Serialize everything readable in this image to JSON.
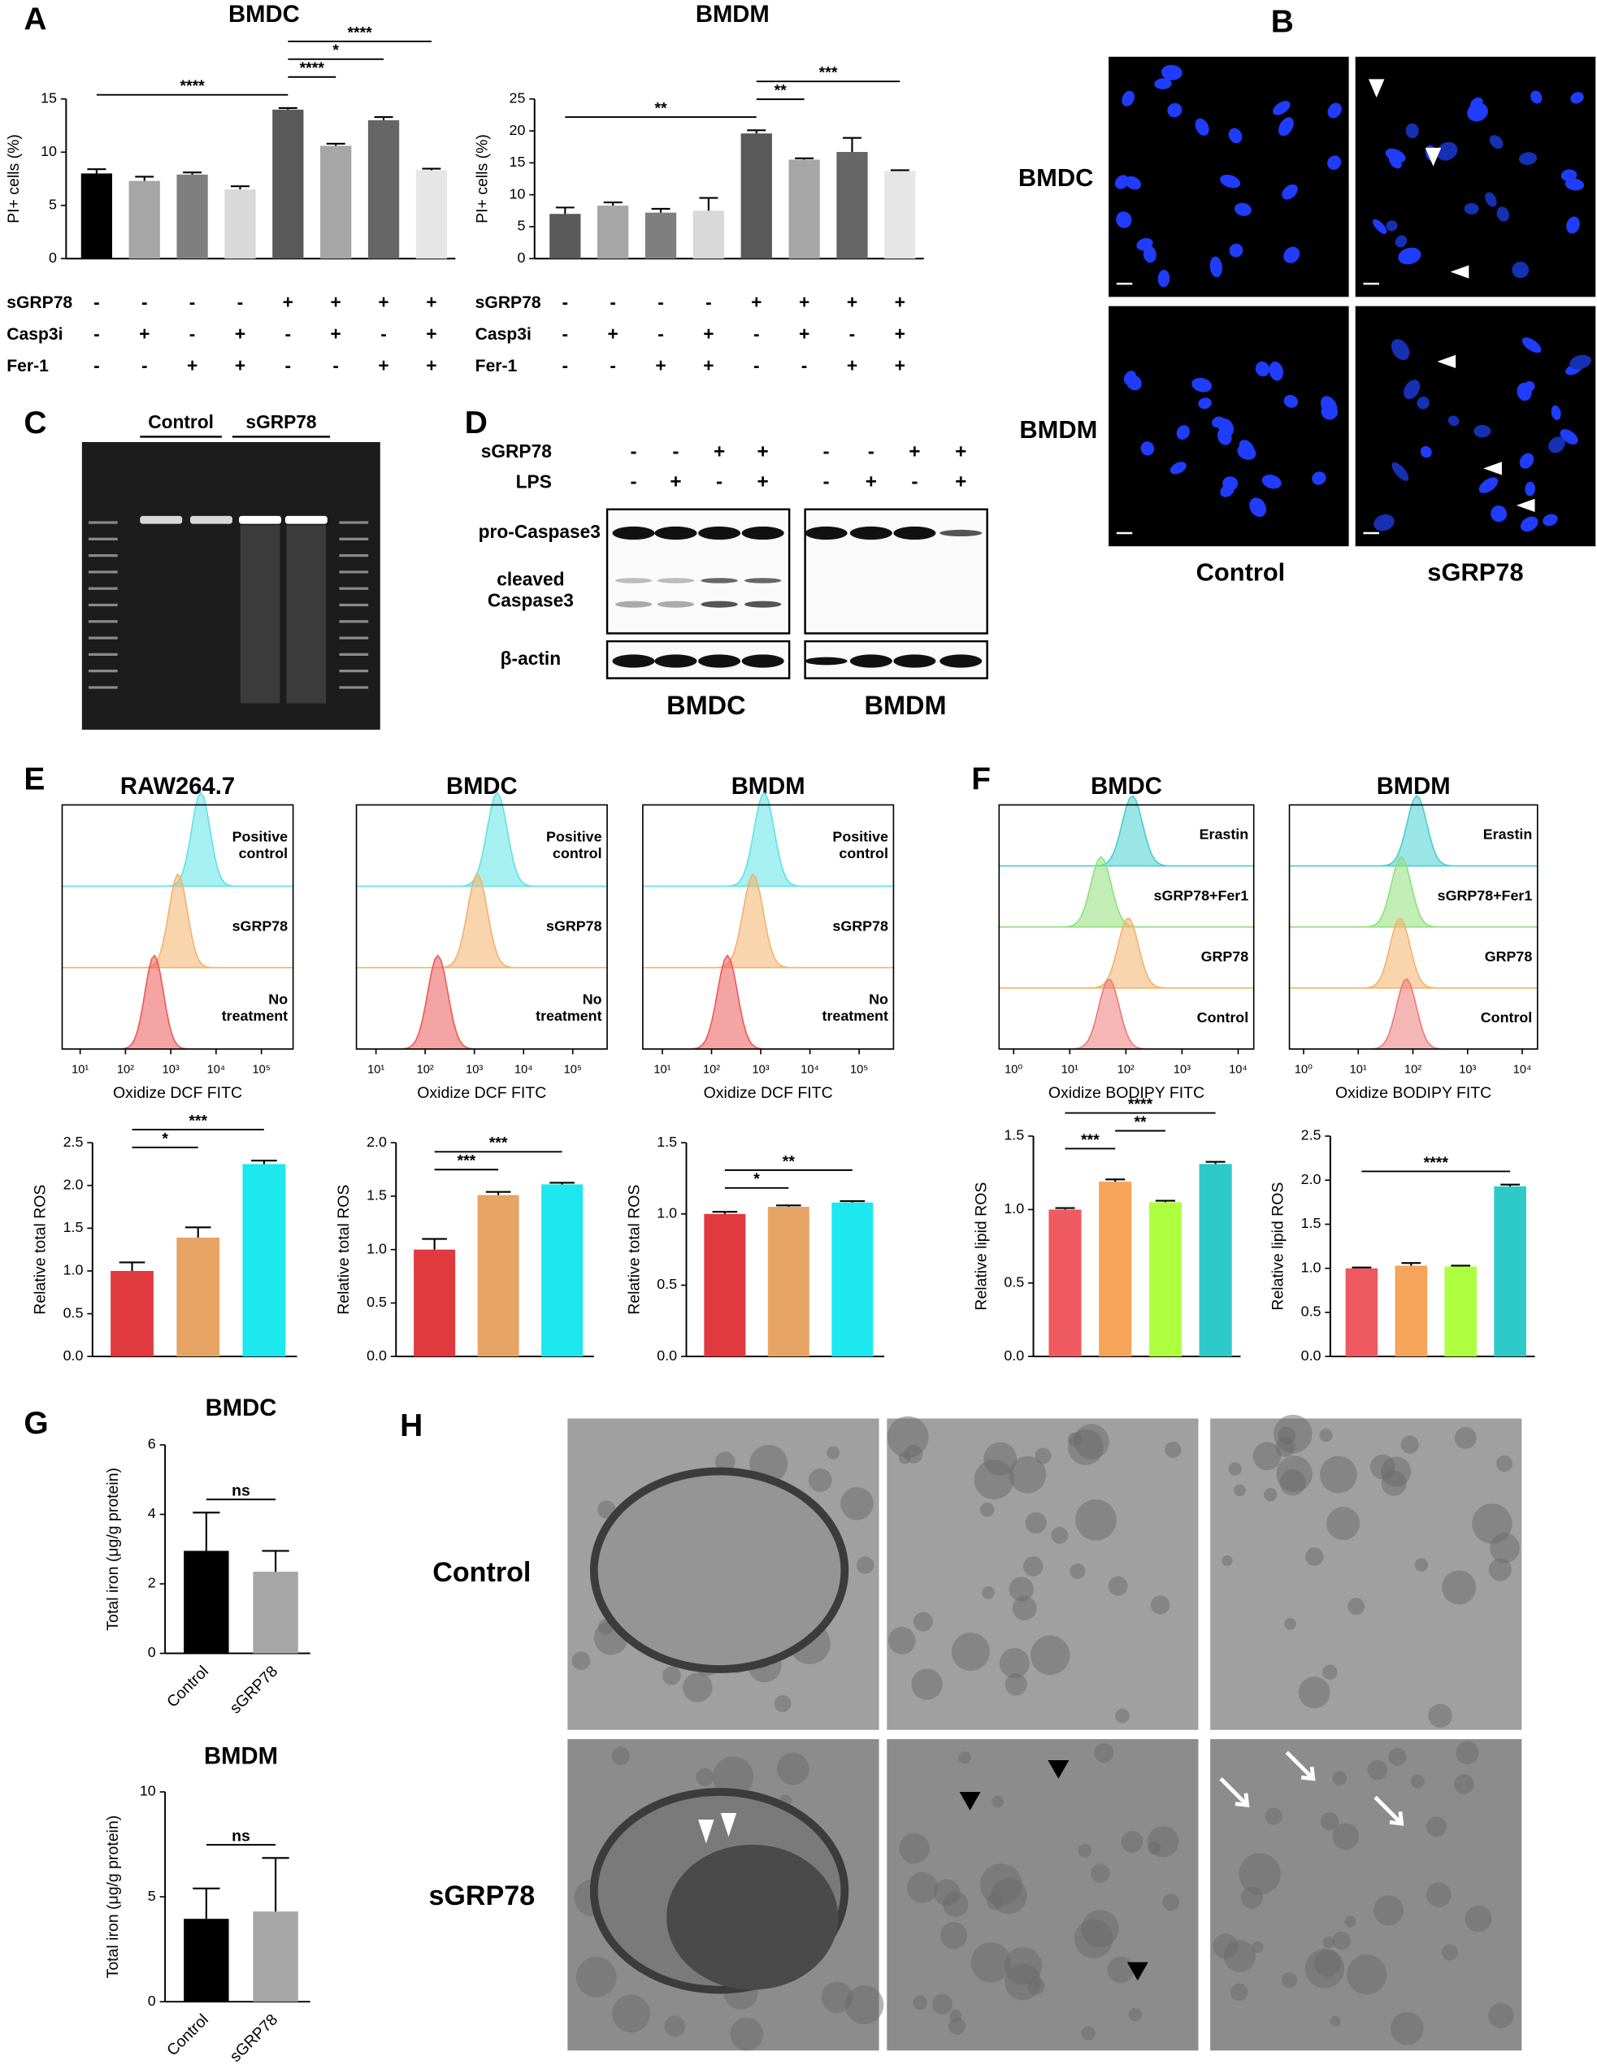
{
  "panel_labels": [
    "A",
    "B",
    "C",
    "D",
    "E",
    "F",
    "G",
    "H"
  ],
  "chart_data": [
    {
      "type": "bar",
      "title": "BMDC",
      "y_label": "PI+ cells (%)",
      "values": [
        8.0,
        7.3,
        7.9,
        6.5,
        14.0,
        10.6,
        13.0,
        8.3
      ],
      "errors": [
        0.4,
        0.4,
        0.2,
        0.3,
        0.15,
        0.2,
        0.3,
        0.15
      ],
      "colors": [
        "#000000",
        "#a6a6a6",
        "#7f7f7f",
        "#d9d9d9",
        "#595959",
        "#a6a6a6",
        "#666666",
        "#e6e6e6"
      ],
      "ylim": [
        0,
        15
      ],
      "yticks": [
        0,
        5,
        10,
        15
      ],
      "conditions": [
        {
          "name": "sGRP78",
          "values": [
            "-",
            "-",
            "-",
            "-",
            "+",
            "+",
            "+",
            "+"
          ]
        },
        {
          "name": "Casp3i",
          "values": [
            "-",
            "+",
            "-",
            "+",
            "-",
            "+",
            "-",
            "+"
          ]
        },
        {
          "name": "Fer-1",
          "values": [
            "-",
            "-",
            "+",
            "+",
            "-",
            "-",
            "+",
            "+"
          ]
        }
      ],
      "significance": [
        {
          "label": "****",
          "from": 0,
          "to": 4
        },
        {
          "label": "****",
          "from": 4,
          "to": 5
        },
        {
          "label": "*",
          "from": 4,
          "to": 6
        },
        {
          "label": "****",
          "from": 4,
          "to": 7
        }
      ]
    },
    {
      "type": "bar",
      "title": "BMDM",
      "y_label": "PI+ cells (%)",
      "values": [
        7.0,
        8.3,
        7.2,
        7.5,
        19.6,
        15.5,
        16.7,
        13.7
      ],
      "errors": [
        1.0,
        0.5,
        0.6,
        2.0,
        0.5,
        0.2,
        2.2,
        0.15
      ],
      "colors": [
        "#595959",
        "#a6a6a6",
        "#7f7f7f",
        "#d9d9d9",
        "#595959",
        "#a6a6a6",
        "#666666",
        "#e6e6e6"
      ],
      "ylim": [
        0,
        25
      ],
      "yticks": [
        0,
        5,
        10,
        15,
        20,
        25
      ],
      "conditions": [
        {
          "name": "sGRP78",
          "values": [
            "-",
            "-",
            "-",
            "-",
            "+",
            "+",
            "+",
            "+"
          ]
        },
        {
          "name": "Casp3i",
          "values": [
            "-",
            "+",
            "-",
            "+",
            "-",
            "+",
            "-",
            "+"
          ]
        },
        {
          "name": "Fer-1",
          "values": [
            "-",
            "-",
            "+",
            "+",
            "-",
            "-",
            "+",
            "+"
          ]
        }
      ],
      "significance": [
        {
          "label": "**",
          "from": 0,
          "to": 4
        },
        {
          "label": "**",
          "from": 4,
          "to": 5
        },
        {
          "label": "***",
          "from": 4,
          "to": 7
        }
      ]
    },
    {
      "type": "density",
      "title": "RAW264.7",
      "x_label": "Oxidize DCF FITC",
      "log_x": true,
      "xlim": [
        4,
        500000
      ],
      "xticks": [
        {
          "value": 10,
          "label": "10¹"
        },
        {
          "value": 100,
          "label": "10²"
        },
        {
          "value": 1000,
          "label": "10³"
        },
        {
          "value": 10000,
          "label": "10⁴"
        },
        {
          "value": 100000,
          "label": "10⁵"
        }
      ],
      "series": [
        {
          "name": "Positive control",
          "color": "#5fe3e6",
          "peak": 4600
        },
        {
          "name": "sGRP78",
          "color": "#f4b26b",
          "peak": 1450
        },
        {
          "name": "No treatment",
          "color": "#ec5a5a",
          "peak": 430
        }
      ]
    },
    {
      "type": "density",
      "title": "BMDC",
      "x_label": "Oxidize DCF FITC",
      "log_x": true,
      "xlim": [
        4,
        500000
      ],
      "xticks": [
        {
          "value": 10,
          "label": "10¹"
        },
        {
          "value": 100,
          "label": "10²"
        },
        {
          "value": 1000,
          "label": "10³"
        },
        {
          "value": 10000,
          "label": "10⁴"
        },
        {
          "value": 100000,
          "label": "10⁵"
        }
      ],
      "series": [
        {
          "name": "Positive control",
          "color": "#5fe3e6",
          "peak": 2900
        },
        {
          "name": "sGRP78",
          "color": "#f4b26b",
          "peak": 1150
        },
        {
          "name": "No treatment",
          "color": "#ec5a5a",
          "peak": 180
        }
      ]
    },
    {
      "type": "density",
      "title": "BMDM",
      "x_label": "Oxidize DCF FITC",
      "log_x": true,
      "xlim": [
        4,
        500000
      ],
      "xticks": [
        {
          "value": 10,
          "label": "10¹"
        },
        {
          "value": 100,
          "label": "10²"
        },
        {
          "value": 1000,
          "label": "10³"
        },
        {
          "value": 10000,
          "label": "10⁴"
        },
        {
          "value": 100000,
          "label": "10⁵"
        }
      ],
      "series": [
        {
          "name": "Positive control",
          "color": "#5fe3e6",
          "peak": 1170
        },
        {
          "name": "sGRP78",
          "color": "#f4b26b",
          "peak": 700
        },
        {
          "name": "No treatment",
          "color": "#ec5a5a",
          "peak": 210
        }
      ]
    },
    {
      "type": "bar",
      "y_label": "Relative total ROS",
      "values": [
        1.0,
        1.39,
        2.25
      ],
      "errors": [
        0.1,
        0.12,
        0.04
      ],
      "colors": [
        "#e0393e",
        "#e8a464",
        "#1de8ef"
      ],
      "ylim": [
        0,
        2.5
      ],
      "yticks": [
        {
          "value": 0,
          "label": "0.0"
        },
        0.5,
        {
          "value": 1,
          "label": "1.0"
        },
        1.5,
        {
          "value": 2,
          "label": "2.0"
        },
        2.5
      ],
      "significance": [
        {
          "label": "*",
          "from": 0,
          "to": 1
        },
        {
          "label": "***",
          "from": 0,
          "to": 2
        }
      ]
    },
    {
      "type": "bar",
      "y_label": "Relative total ROS",
      "values": [
        1.0,
        1.51,
        1.61
      ],
      "errors": [
        0.1,
        0.03,
        0.015
      ],
      "colors": [
        "#e0393e",
        "#e8a464",
        "#1de8ef"
      ],
      "ylim": [
        0,
        2
      ],
      "yticks": [
        {
          "value": 0,
          "label": "0.0"
        },
        0.5,
        {
          "value": 1,
          "label": "1.0"
        },
        1.5,
        {
          "value": 2,
          "label": "2.0"
        }
      ],
      "significance": [
        {
          "label": "***",
          "from": 0,
          "to": 1
        },
        {
          "label": "***",
          "from": 0,
          "to": 2
        }
      ]
    },
    {
      "type": "bar",
      "y_label": "Relative total ROS",
      "values": [
        1.0,
        1.05,
        1.08
      ],
      "errors": [
        0.015,
        0.01,
        0.01
      ],
      "colors": [
        "#e0393e",
        "#e8a464",
        "#1de8ef"
      ],
      "ylim": [
        0,
        1.5
      ],
      "yticks": [
        {
          "value": 0,
          "label": "0.0"
        },
        0.5,
        {
          "value": 1,
          "label": "1.0"
        },
        1.5
      ],
      "significance": [
        {
          "label": "*",
          "from": 0,
          "to": 1
        },
        {
          "label": "**",
          "from": 0,
          "to": 2
        }
      ]
    },
    {
      "type": "density",
      "title": "BMDC",
      "x_label": "Oxidize BODIPY FITC",
      "log_x": true,
      "xlim": [
        0.55,
        19000
      ],
      "xticks": [
        {
          "value": 1,
          "label": "10⁰"
        },
        {
          "value": 10,
          "label": "10¹"
        },
        {
          "value": 100,
          "label": "10²"
        },
        {
          "value": 1000,
          "label": "10³"
        },
        {
          "value": 10000,
          "label": "10⁴"
        }
      ],
      "series": [
        {
          "name": "Erastin",
          "color": "#47cfcf",
          "peak": 130
        },
        {
          "name": "sGRP78+Fer1",
          "color": "#8fe07a",
          "peak": 36
        },
        {
          "name": "GRP78",
          "color": "#f4b26b",
          "peak": 110
        },
        {
          "name": "Control",
          "color": "#ec7a7a",
          "peak": 50
        }
      ]
    },
    {
      "type": "density",
      "title": "BMDM",
      "x_label": "Oxidize BODIPY FITC",
      "log_x": true,
      "xlim": [
        0.55,
        19000
      ],
      "xticks": [
        {
          "value": 1,
          "label": "10⁰"
        },
        {
          "value": 10,
          "label": "10¹"
        },
        {
          "value": 100,
          "label": "10²"
        },
        {
          "value": 1000,
          "label": "10³"
        },
        {
          "value": 10000,
          "label": "10⁴"
        }
      ],
      "series": [
        {
          "name": "Erastin",
          "color": "#47cfcf",
          "peak": 118
        },
        {
          "name": "sGRP78+Fer1",
          "color": "#8fe07a",
          "peak": 61
        },
        {
          "name": "GRP78",
          "color": "#f4b26b",
          "peak": 58
        },
        {
          "name": "Control",
          "color": "#ec7a7a",
          "peak": 76
        }
      ]
    },
    {
      "type": "bar",
      "y_label": "Relative lipid ROS",
      "values": [
        1.0,
        1.19,
        1.05,
        1.31
      ],
      "errors": [
        0.01,
        0.015,
        0.01,
        0.015
      ],
      "colors": [
        "#ee5a5f",
        "#f5a45a",
        "#adff3f",
        "#2ec9c9"
      ],
      "ylim": [
        0,
        1.5
      ],
      "yticks": [
        {
          "value": 0,
          "label": "0.0"
        },
        0.5,
        {
          "value": 1,
          "label": "1.0"
        },
        1.5
      ],
      "significance": [
        {
          "label": "***",
          "from": 0,
          "to": 1
        },
        {
          "label": "**",
          "from": 1,
          "to": 2
        },
        {
          "label": "****",
          "from": 0,
          "to": 3
        }
      ]
    },
    {
      "type": "bar",
      "y_label": "Relative lipid ROS",
      "values": [
        1.0,
        1.03,
        1.02,
        1.93
      ],
      "errors": [
        0.01,
        0.03,
        0.01,
        0.02
      ],
      "colors": [
        "#ee5a5f",
        "#f5a45a",
        "#adff3f",
        "#2ec9c9"
      ],
      "ylim": [
        0,
        2.5
      ],
      "yticks": [
        {
          "value": 0,
          "label": "0.0"
        },
        0.5,
        {
          "value": 1,
          "label": "1.0"
        },
        1.5,
        {
          "value": 2,
          "label": "2.0"
        },
        2.5
      ],
      "significance": [
        {
          "label": "****",
          "from": 0,
          "to": 3
        }
      ]
    },
    {
      "type": "bar",
      "title": "BMDC",
      "y_label": "Total iron (μg/g protein)",
      "categories": [
        "Control",
        "sGRP78"
      ],
      "values": [
        2.95,
        2.35
      ],
      "errors": [
        1.1,
        0.6
      ],
      "colors": [
        "#000000",
        "#a6a6a6"
      ],
      "ylim": [
        0,
        6
      ],
      "yticks": [
        0,
        2,
        4,
        6
      ],
      "significance": [
        {
          "label": "ns",
          "from": 0,
          "to": 1
        }
      ]
    },
    {
      "type": "bar",
      "title": "BMDM",
      "y_label": "Total iron (μg/g protein)",
      "categories": [
        "Control",
        "sGRP78"
      ],
      "values": [
        3.95,
        4.3
      ],
      "errors": [
        1.45,
        2.55
      ],
      "colors": [
        "#000000",
        "#a6a6a6"
      ],
      "ylim": [
        0,
        10
      ],
      "yticks": [
        0,
        5,
        10
      ],
      "significance": [
        {
          "label": "ns",
          "from": 0,
          "to": 1
        }
      ]
    }
  ],
  "microscopy": {
    "rows": [
      "BMDC",
      "BMDM"
    ],
    "columns": [
      "Control",
      "sGRP78"
    ]
  },
  "gel": {
    "lanes": [
      "Control",
      "sGRP78"
    ]
  },
  "western": {
    "conditions": [
      {
        "name": "sGRP78",
        "values": [
          "-",
          "-",
          "+",
          "+"
        ]
      },
      {
        "name": "LPS",
        "values": [
          "-",
          "+",
          "-",
          "+"
        ]
      }
    ],
    "bands": [
      "pro-Caspase3",
      "cleaved Caspase3",
      "β-actin"
    ],
    "groups": [
      "BMDC",
      "BMDM"
    ]
  },
  "em": {
    "rows": [
      "Control",
      "sGRP78"
    ]
  }
}
